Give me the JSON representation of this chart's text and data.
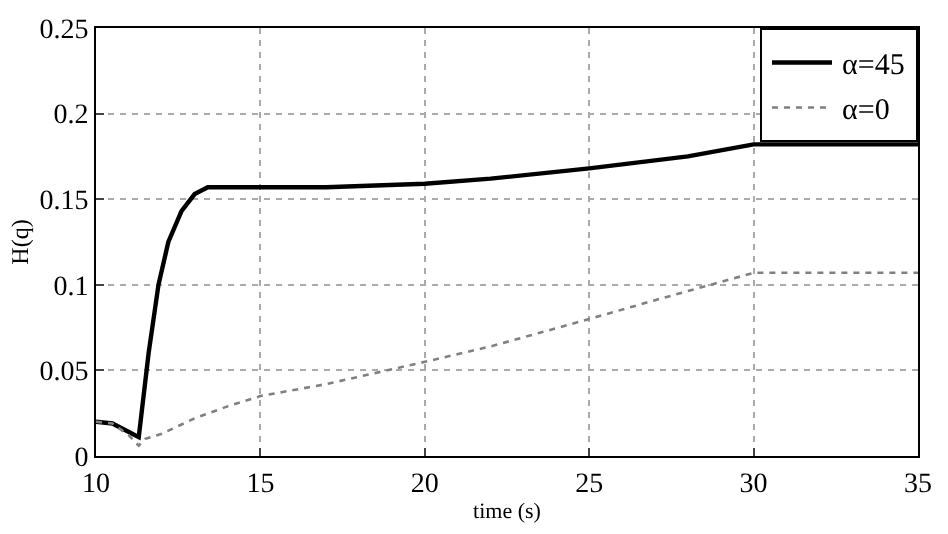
{
  "chart_data": {
    "type": "line",
    "xlabel": "time (s)",
    "ylabel": "H(q)",
    "xlim": [
      10,
      35
    ],
    "ylim": [
      0,
      0.25
    ],
    "xticks": [
      10,
      15,
      20,
      25,
      30,
      35
    ],
    "yticks": [
      0,
      0.05,
      0.1,
      0.15,
      0.2,
      0.25
    ],
    "grid": true,
    "legend": "top right",
    "series": [
      {
        "name": "α=45",
        "color": "#000000",
        "line_style": "solid",
        "x": [
          10,
          10.5,
          11,
          11.3,
          11.6,
          11.9,
          12.2,
          12.6,
          13,
          13.4,
          15,
          17,
          20,
          22,
          25,
          28,
          30,
          35
        ],
        "values": [
          0.02,
          0.019,
          0.014,
          0.011,
          0.06,
          0.1,
          0.125,
          0.143,
          0.153,
          0.157,
          0.157,
          0.157,
          0.159,
          0.162,
          0.168,
          0.175,
          0.182,
          0.182
        ]
      },
      {
        "name": "α=0",
        "color": "#808080",
        "line_style": "dotted",
        "x": [
          10,
          10.5,
          11,
          11.3,
          11.5,
          12,
          13,
          14,
          15,
          17,
          20,
          22,
          25,
          27,
          30,
          35
        ],
        "values": [
          0.02,
          0.019,
          0.012,
          0.006,
          0.01,
          0.013,
          0.022,
          0.029,
          0.035,
          0.042,
          0.055,
          0.064,
          0.08,
          0.091,
          0.107,
          0.107
        ]
      }
    ]
  }
}
